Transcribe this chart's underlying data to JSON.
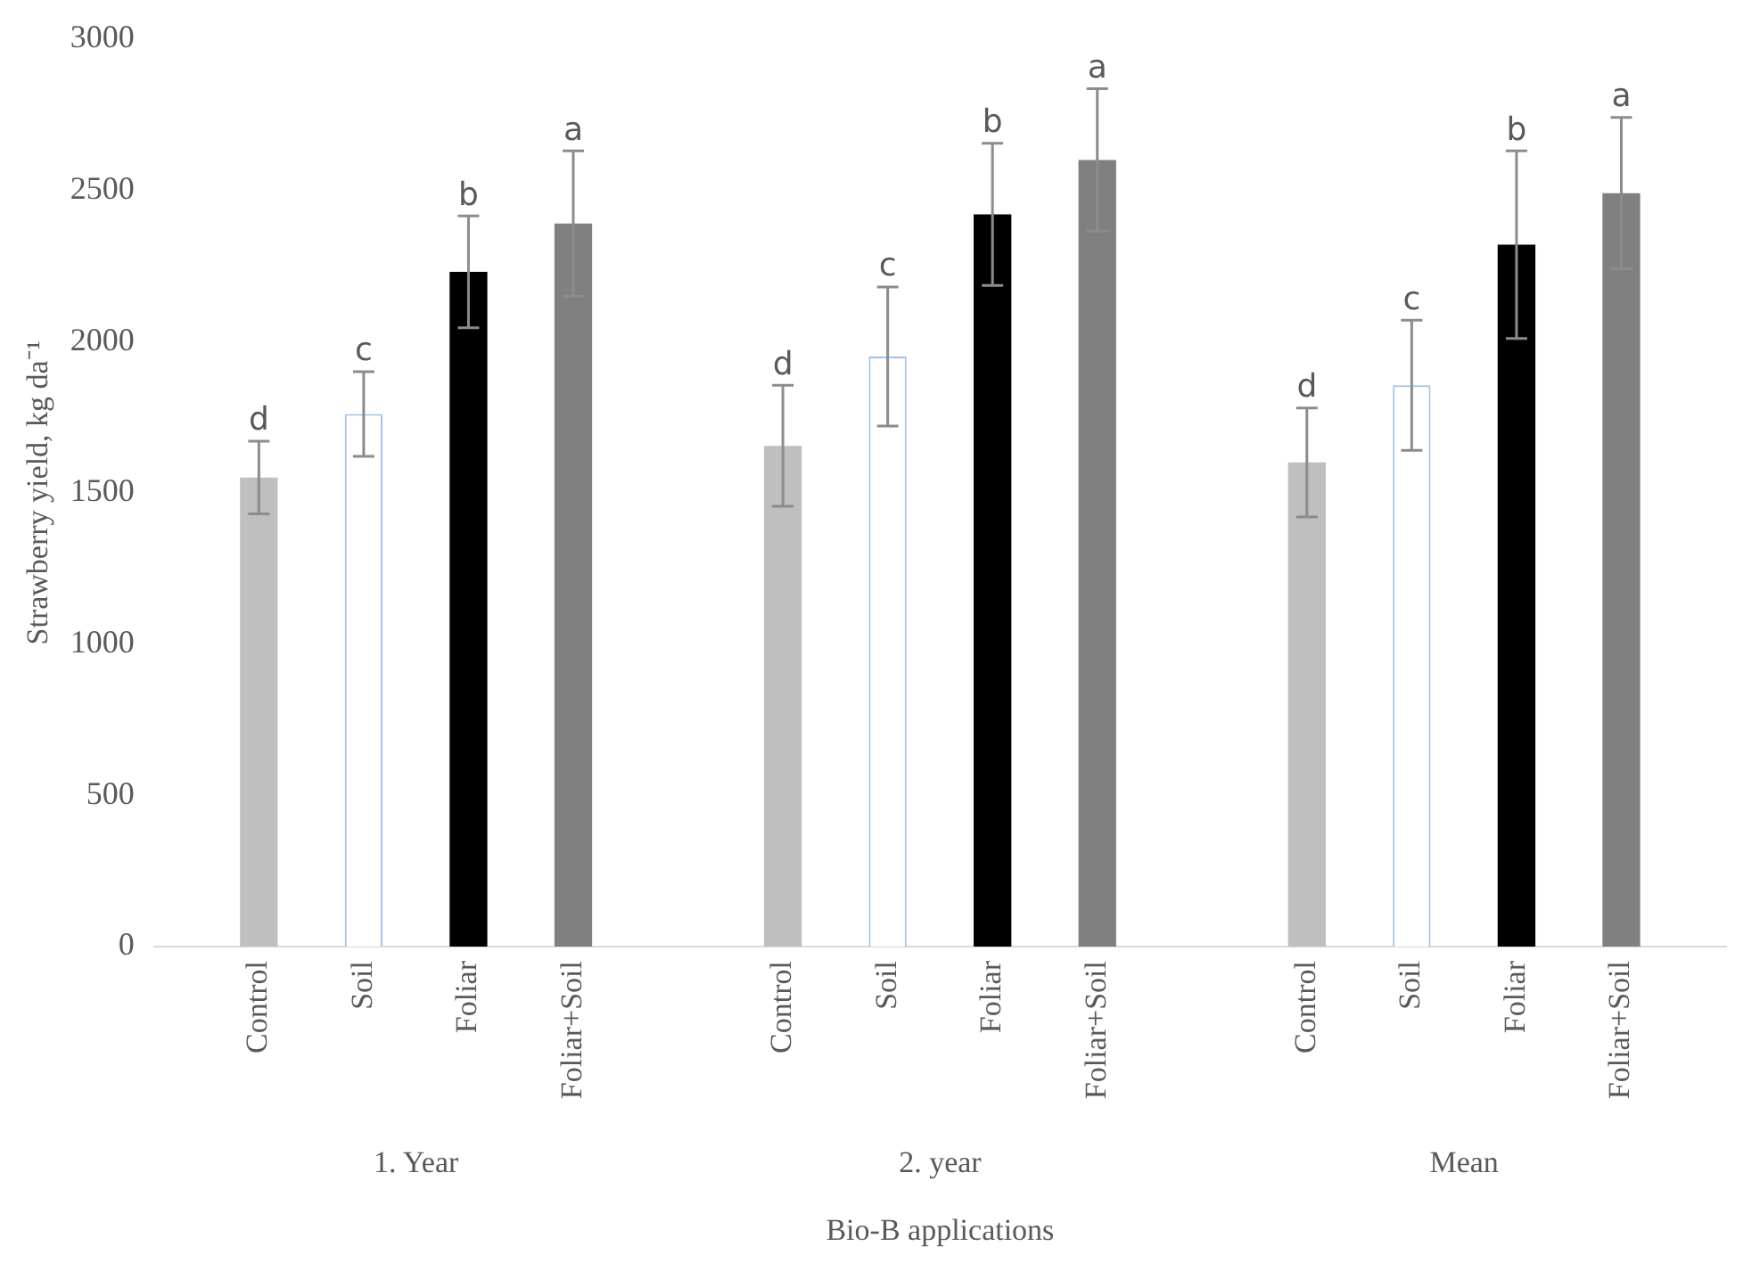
{
  "chart_data": {
    "type": "bar",
    "xlabel": "Bio-B applications",
    "ylabel": "Strawberry yield, kg da⁻¹",
    "categories": [
      "1. Year",
      "2. year",
      "Mean"
    ],
    "ylim": [
      0,
      3000
    ],
    "yticks": [
      0,
      500,
      1000,
      1500,
      2000,
      2500,
      3000
    ],
    "grid": false,
    "legend": false,
    "series": [
      {
        "name": "Control",
        "color": "#bfbfbf",
        "values": [
          1550,
          1655,
          1600
        ],
        "errors": [
          120,
          200,
          180
        ],
        "value_labels": [
          "d",
          "d",
          "d"
        ]
      },
      {
        "name": "Soil",
        "color": "#ffffff",
        "values": [
          1760,
          1950,
          1855
        ],
        "errors": [
          140,
          230,
          215
        ],
        "value_labels": [
          "c",
          "c",
          "c"
        ]
      },
      {
        "name": "Foliar",
        "color": "#000000",
        "values": [
          2230,
          2420,
          2320
        ],
        "errors": [
          185,
          235,
          310
        ],
        "value_labels": [
          "b",
          "b",
          "b"
        ]
      },
      {
        "name": "Foliar+Soil",
        "color": "#808080",
        "values": [
          2390,
          2600,
          2490
        ],
        "errors": [
          240,
          235,
          250
        ],
        "value_labels": [
          "a",
          "a",
          "a"
        ]
      }
    ]
  }
}
